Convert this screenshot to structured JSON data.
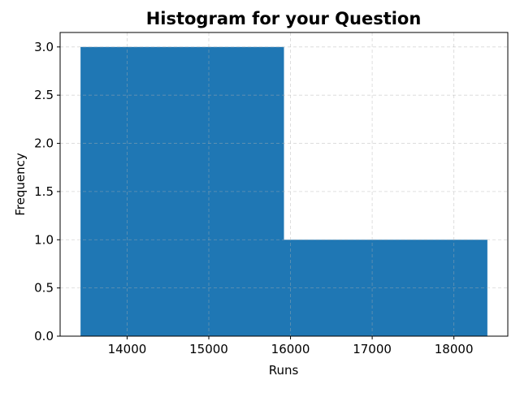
{
  "chart_data": {
    "type": "bar",
    "title": "Histogram for your Question",
    "xlabel": "Runs",
    "ylabel": "Frequency",
    "bins": [
      {
        "x_start": 13430,
        "x_end": 15920,
        "value": 3
      },
      {
        "x_start": 15920,
        "x_end": 18410,
        "value": 1
      }
    ],
    "xlim": [
      13180,
      18660
    ],
    "ylim": [
      0,
      3.15
    ],
    "x_ticks": [
      14000,
      15000,
      16000,
      17000,
      18000
    ],
    "y_ticks": [
      0.0,
      0.5,
      1.0,
      1.5,
      2.0,
      2.5,
      3.0
    ],
    "x_tick_labels": [
      "14000",
      "15000",
      "16000",
      "17000",
      "18000"
    ],
    "y_tick_labels": [
      "0.0",
      "0.5",
      "1.0",
      "1.5",
      "2.0",
      "2.5",
      "3.0"
    ],
    "grid": true,
    "bar_color": "#1f77b4",
    "grid_color": "#b0b0b0"
  }
}
